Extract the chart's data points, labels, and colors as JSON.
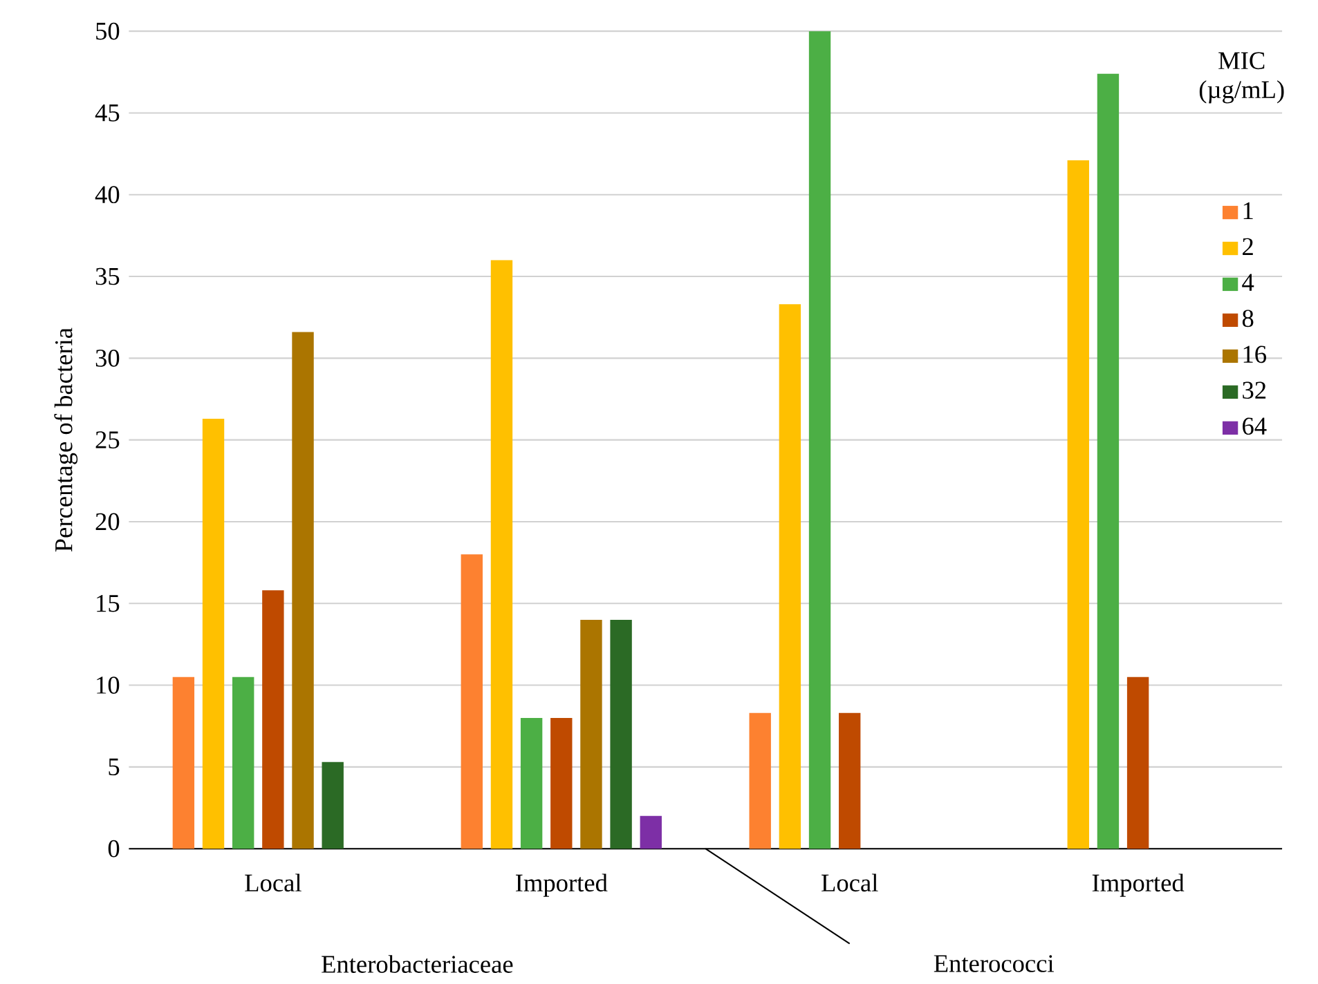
{
  "chart_data": {
    "type": "bar",
    "ylabel": "Percentage of bacteria",
    "legend_title": "MIC (µg/mL)",
    "categories": [
      "Local",
      "Imported",
      "Local",
      "Imported"
    ],
    "annotations": [
      "Enterobacteriaceae",
      "Enterococci"
    ],
    "series": [
      {
        "name": "1",
        "color": "#fd8130",
        "values": [
          10.5,
          18,
          8.3,
          null
        ]
      },
      {
        "name": "2",
        "color": "#ffc000",
        "values": [
          26.3,
          36,
          33.3,
          42.1
        ]
      },
      {
        "name": "4",
        "color": "#4caf45",
        "values": [
          10.5,
          8,
          50,
          47.4
        ]
      },
      {
        "name": "8",
        "color": "#bf4a00",
        "values": [
          15.8,
          8,
          8.3,
          10.5
        ]
      },
      {
        "name": "16",
        "color": "#ab7500",
        "values": [
          31.6,
          14,
          null,
          null
        ]
      },
      {
        "name": "32",
        "color": "#2b6a25",
        "values": [
          5.3,
          14,
          null,
          null
        ]
      },
      {
        "name": "64",
        "color": "#7d2fa6",
        "values": [
          null,
          2,
          null,
          null
        ]
      }
    ],
    "ylim": [
      0,
      50
    ],
    "yticks": [
      0,
      5,
      10,
      15,
      20,
      25,
      30,
      35,
      40,
      45,
      50
    ],
    "grid": "y",
    "legend": "top right"
  }
}
